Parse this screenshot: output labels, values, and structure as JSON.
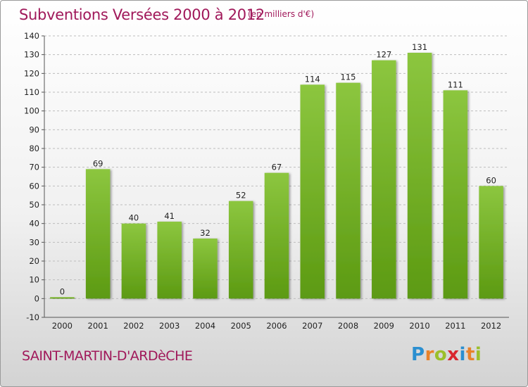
{
  "header": {
    "title": "Subventions Versées 2000 à 2012",
    "subtitle": "(en milliers d'€)"
  },
  "footer": {
    "commune": "SAINT-MARTIN-D'ARDèCHE",
    "logo_letters": [
      "P",
      "r",
      "o",
      "x",
      "i",
      "t",
      "i"
    ],
    "logo_colors": [
      "#2b8fd0",
      "#e8822a",
      "#9bbf2a",
      "#d9262f",
      "#2b8fd0",
      "#e8822a",
      "#9bbf2a"
    ]
  },
  "chart_data": {
    "type": "bar",
    "categories": [
      "2000",
      "2001",
      "2002",
      "2003",
      "2004",
      "2005",
      "2006",
      "2007",
      "2008",
      "2009",
      "2010",
      "2011",
      "2012"
    ],
    "values": [
      0,
      69,
      40,
      41,
      32,
      52,
      67,
      114,
      115,
      127,
      131,
      111,
      60
    ],
    "data_labels": [
      "0",
      "69",
      "40",
      "41",
      "32",
      "52",
      "67",
      "114",
      "115",
      "127",
      "131",
      "111",
      "60"
    ],
    "ylim": [
      -10,
      140
    ],
    "yticks": [
      -10,
      0,
      10,
      20,
      30,
      40,
      50,
      60,
      70,
      80,
      90,
      100,
      110,
      120,
      130,
      140
    ],
    "grid": true,
    "bar_color": "#8cc63f",
    "bar_color_dark": "#5c9a12",
    "title": "Subventions Versées 2000 à 2012",
    "xlabel": "",
    "ylabel": ""
  }
}
